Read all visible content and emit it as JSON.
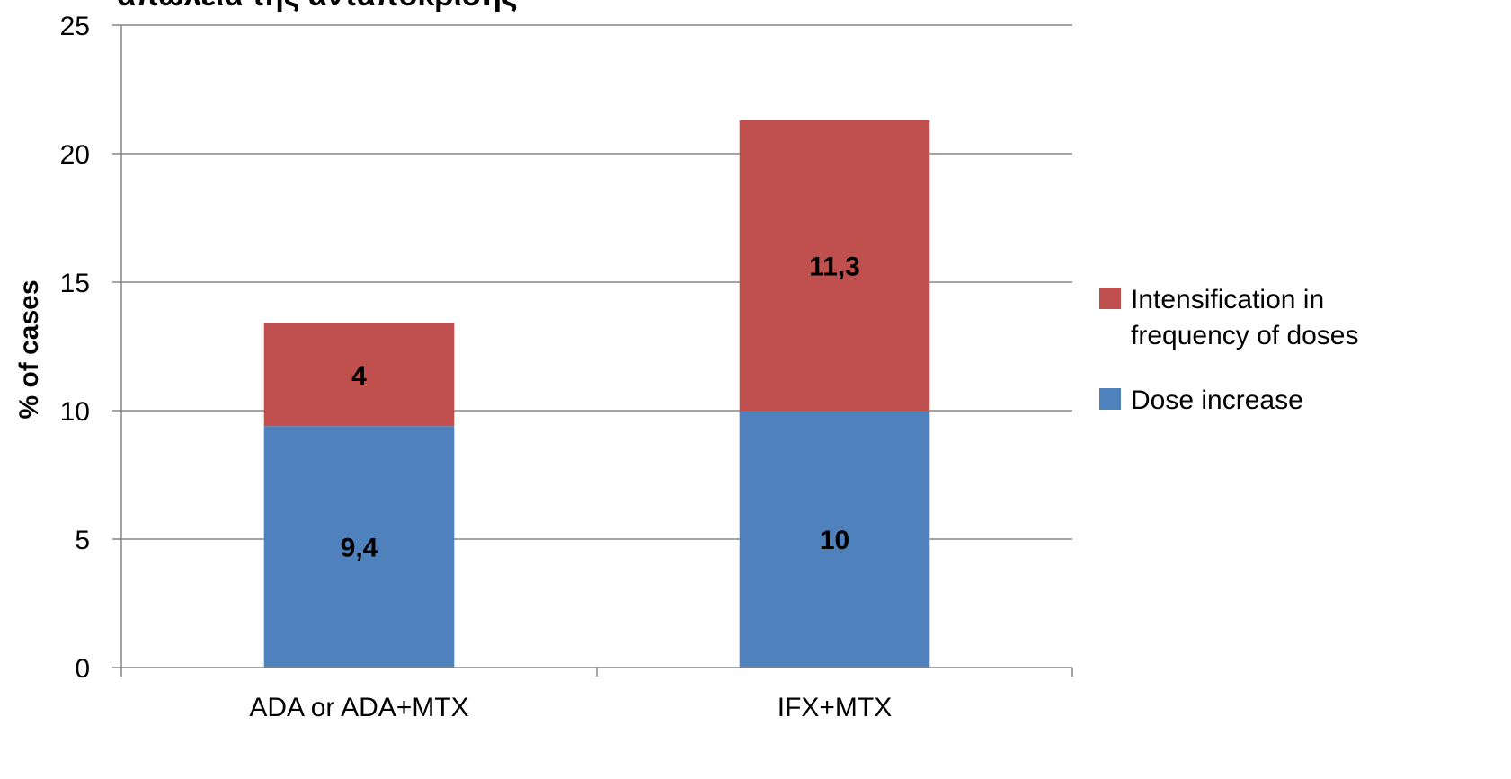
{
  "chart_data": {
    "type": "bar",
    "stacked": true,
    "title": "απώλεια της ανταπόκρισης",
    "ylabel": "% of cases",
    "xlabel": "",
    "ylim": [
      0,
      25
    ],
    "yticks": [
      0,
      5,
      10,
      15,
      20,
      25
    ],
    "grid": true,
    "legend_position": "right",
    "categories": [
      "ADA or ADA+MTX",
      "IFX+MTX"
    ],
    "series": [
      {
        "name": "Dose increase",
        "values": [
          9.4,
          10
        ],
        "labels": [
          "9,4",
          "10"
        ],
        "color": "#4F81BD"
      },
      {
        "name": "Intensification in frequency of doses",
        "legend_lines": [
          "Intensification in",
          "frequency of doses"
        ],
        "values": [
          4,
          11.3
        ],
        "labels": [
          "4",
          "11,3"
        ],
        "color": "#C0504D"
      }
    ]
  }
}
